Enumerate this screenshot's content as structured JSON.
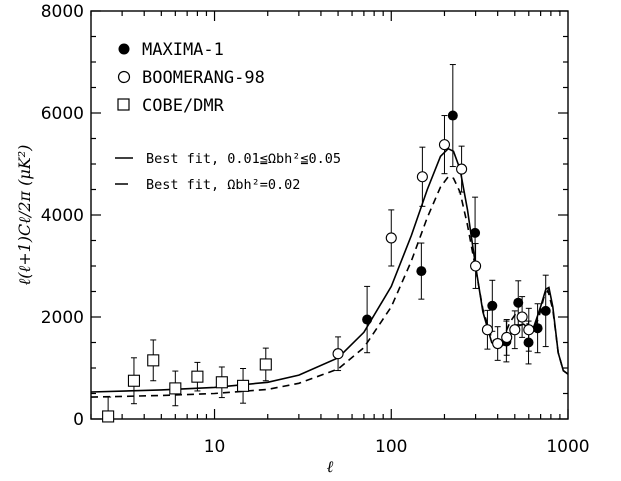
{
  "chart_data": {
    "type": "scatter",
    "title": "",
    "xlabel": "ℓ",
    "ylabel": "ℓ(ℓ+1)Cℓ/2π   (μK²)",
    "xscale": "log",
    "xlim": [
      2,
      1000
    ],
    "ylim": [
      0,
      8000
    ],
    "grid": false,
    "legend_position": "top-left",
    "x_ticks": [
      {
        "value": 10,
        "label": "10"
      },
      {
        "value": 100,
        "label": "100"
      },
      {
        "value": 1000,
        "label": "1000"
      }
    ],
    "y_ticks": [
      {
        "value": 0,
        "label": "0"
      },
      {
        "value": 2000,
        "label": "2000"
      },
      {
        "value": 4000,
        "label": "4000"
      },
      {
        "value": 6000,
        "label": "6000"
      },
      {
        "value": 8000,
        "label": "8000"
      }
    ],
    "series": [
      {
        "name": "MAXIMA-1",
        "marker": "filled-circle",
        "points": [
          {
            "x": 73,
            "y": 1950,
            "err": 650
          },
          {
            "x": 148,
            "y": 2900,
            "err": 550
          },
          {
            "x": 223,
            "y": 5950,
            "err": 1000
          },
          {
            "x": 298,
            "y": 3650,
            "err": 700
          },
          {
            "x": 373,
            "y": 2220,
            "err": 500
          },
          {
            "x": 448,
            "y": 1520,
            "err": 400
          },
          {
            "x": 523,
            "y": 2280,
            "err": 430
          },
          {
            "x": 598,
            "y": 1500,
            "err": 420
          },
          {
            "x": 673,
            "y": 1780,
            "err": 480
          },
          {
            "x": 748,
            "y": 2120,
            "err": 700
          }
        ]
      },
      {
        "name": "BOOMERANG-98",
        "marker": "open-circle",
        "points": [
          {
            "x": 50,
            "y": 1280,
            "err": 330
          },
          {
            "x": 100,
            "y": 3550,
            "err": 550
          },
          {
            "x": 150,
            "y": 4750,
            "err": 580
          },
          {
            "x": 200,
            "y": 5380,
            "err": 570
          },
          {
            "x": 250,
            "y": 4900,
            "err": 450
          },
          {
            "x": 300,
            "y": 3000,
            "err": 440
          },
          {
            "x": 350,
            "y": 1750,
            "err": 380
          },
          {
            "x": 400,
            "y": 1480,
            "err": 330
          },
          {
            "x": 450,
            "y": 1600,
            "err": 350
          },
          {
            "x": 500,
            "y": 1750,
            "err": 370
          },
          {
            "x": 550,
            "y": 2000,
            "err": 400
          },
          {
            "x": 600,
            "y": 1750,
            "err": 420
          }
        ]
      },
      {
        "name": "COBE/DMR",
        "marker": "open-square",
        "points": [
          {
            "x": 2.5,
            "y": 50,
            "err": 380
          },
          {
            "x": 3.5,
            "y": 750,
            "err": 450
          },
          {
            "x": 4.5,
            "y": 1150,
            "err": 400
          },
          {
            "x": 6,
            "y": 600,
            "err": 340
          },
          {
            "x": 8,
            "y": 830,
            "err": 280
          },
          {
            "x": 11,
            "y": 720,
            "err": 300
          },
          {
            "x": 14.5,
            "y": 650,
            "err": 340
          },
          {
            "x": 19.5,
            "y": 1070,
            "err": 320
          }
        ]
      }
    ],
    "curves": [
      {
        "name": "Best fit, 0.01≦Ωbh²≦0.05",
        "style": "solid",
        "points": [
          [
            2,
            530
          ],
          [
            5,
            570
          ],
          [
            10,
            620
          ],
          [
            20,
            720
          ],
          [
            30,
            860
          ],
          [
            50,
            1200
          ],
          [
            70,
            1700
          ],
          [
            100,
            2600
          ],
          [
            130,
            3600
          ],
          [
            160,
            4500
          ],
          [
            190,
            5150
          ],
          [
            210,
            5300
          ],
          [
            225,
            5250
          ],
          [
            245,
            4900
          ],
          [
            270,
            4100
          ],
          [
            300,
            3000
          ],
          [
            330,
            2100
          ],
          [
            370,
            1500
          ],
          [
            400,
            1380
          ],
          [
            430,
            1450
          ],
          [
            470,
            1650
          ],
          [
            520,
            1820
          ],
          [
            560,
            1860
          ],
          [
            600,
            1780
          ],
          [
            640,
            1800
          ],
          [
            700,
            2200
          ],
          [
            750,
            2550
          ],
          [
            780,
            2580
          ],
          [
            820,
            2200
          ],
          [
            880,
            1300
          ],
          [
            940,
            950
          ],
          [
            1000,
            880
          ]
        ]
      },
      {
        "name": "Best fit, Ωbh²=0.02",
        "style": "dashed",
        "points": [
          [
            2,
            430
          ],
          [
            5,
            460
          ],
          [
            10,
            500
          ],
          [
            20,
            580
          ],
          [
            30,
            700
          ],
          [
            50,
            980
          ],
          [
            70,
            1400
          ],
          [
            100,
            2200
          ],
          [
            130,
            3100
          ],
          [
            160,
            3950
          ],
          [
            190,
            4550
          ],
          [
            210,
            4750
          ],
          [
            225,
            4720
          ],
          [
            245,
            4450
          ],
          [
            270,
            3800
          ],
          [
            300,
            2950
          ],
          [
            330,
            2150
          ],
          [
            370,
            1580
          ],
          [
            400,
            1450
          ],
          [
            430,
            1580
          ],
          [
            470,
            1900
          ],
          [
            510,
            2080
          ],
          [
            550,
            2030
          ],
          [
            590,
            1850
          ],
          [
            630,
            1760
          ],
          [
            680,
            1960
          ],
          [
            730,
            2380
          ],
          [
            770,
            2520
          ],
          [
            820,
            2150
          ],
          [
            880,
            1300
          ],
          [
            940,
            950
          ],
          [
            1000,
            880
          ]
        ]
      }
    ],
    "fit_legend": [
      {
        "label": "Best fit, 0.01≦Ωbh²≦0.05",
        "style": "solid"
      },
      {
        "label": "Best fit, Ωbh²=0.02",
        "style": "dashed"
      }
    ]
  }
}
